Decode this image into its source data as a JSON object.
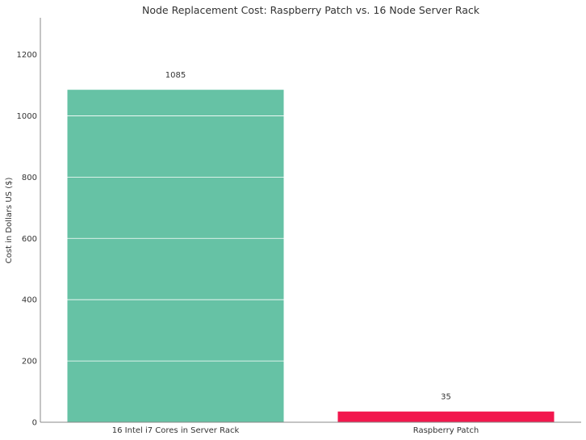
{
  "chart_data": {
    "type": "bar",
    "title": "Node Replacement Cost: Raspberry Patch vs. 16 Node Server Rack",
    "xlabel": "",
    "ylabel": "Cost in Dollars US ($)",
    "categories": [
      "16 Intel i7 Cores in Server Rack",
      "Raspberry Patch"
    ],
    "values": [
      1085,
      35
    ],
    "data_labels": [
      "1085",
      "35"
    ],
    "bar_colors": [
      "#66c2a5",
      "#f2174d"
    ],
    "ylim": [
      0,
      1320
    ],
    "yticks": [
      0,
      200,
      400,
      600,
      800,
      1000,
      1200
    ],
    "ytick_labels": [
      "0",
      "200",
      "400",
      "600",
      "800",
      "1000",
      "1200"
    ],
    "grid": true,
    "grid_color": "#ffffff",
    "legend": "none"
  }
}
